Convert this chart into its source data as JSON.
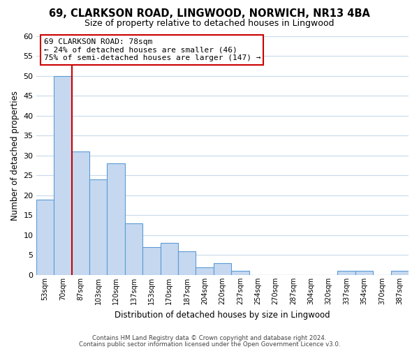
{
  "title": "69, CLARKSON ROAD, LINGWOOD, NORWICH, NR13 4BA",
  "subtitle": "Size of property relative to detached houses in Lingwood",
  "xlabel": "Distribution of detached houses by size in Lingwood",
  "ylabel": "Number of detached properties",
  "bar_labels": [
    "53sqm",
    "70sqm",
    "87sqm",
    "103sqm",
    "120sqm",
    "137sqm",
    "153sqm",
    "170sqm",
    "187sqm",
    "204sqm",
    "220sqm",
    "237sqm",
    "254sqm",
    "270sqm",
    "287sqm",
    "304sqm",
    "320sqm",
    "337sqm",
    "354sqm",
    "370sqm",
    "387sqm"
  ],
  "bar_values": [
    19,
    50,
    31,
    24,
    28,
    13,
    7,
    8,
    6,
    2,
    3,
    1,
    0,
    0,
    0,
    0,
    0,
    1,
    1,
    0,
    1
  ],
  "bar_color": "#c5d8f0",
  "bar_edge_color": "#5b9bd5",
  "grid_color": "#c8daea",
  "bg_color": "#ffffff",
  "ylim": [
    0,
    60
  ],
  "yticks": [
    0,
    5,
    10,
    15,
    20,
    25,
    30,
    35,
    40,
    45,
    50,
    55,
    60
  ],
  "property_line_color": "#cc0000",
  "annotation_box_text": "69 CLARKSON ROAD: 78sqm\n← 24% of detached houses are smaller (46)\n75% of semi-detached houses are larger (147) →",
  "annotation_box_color": "#ffffff",
  "annotation_box_edge_color": "#cc0000",
  "footer_line1": "Contains HM Land Registry data © Crown copyright and database right 2024.",
  "footer_line2": "Contains public sector information licensed under the Open Government Licence v3.0."
}
